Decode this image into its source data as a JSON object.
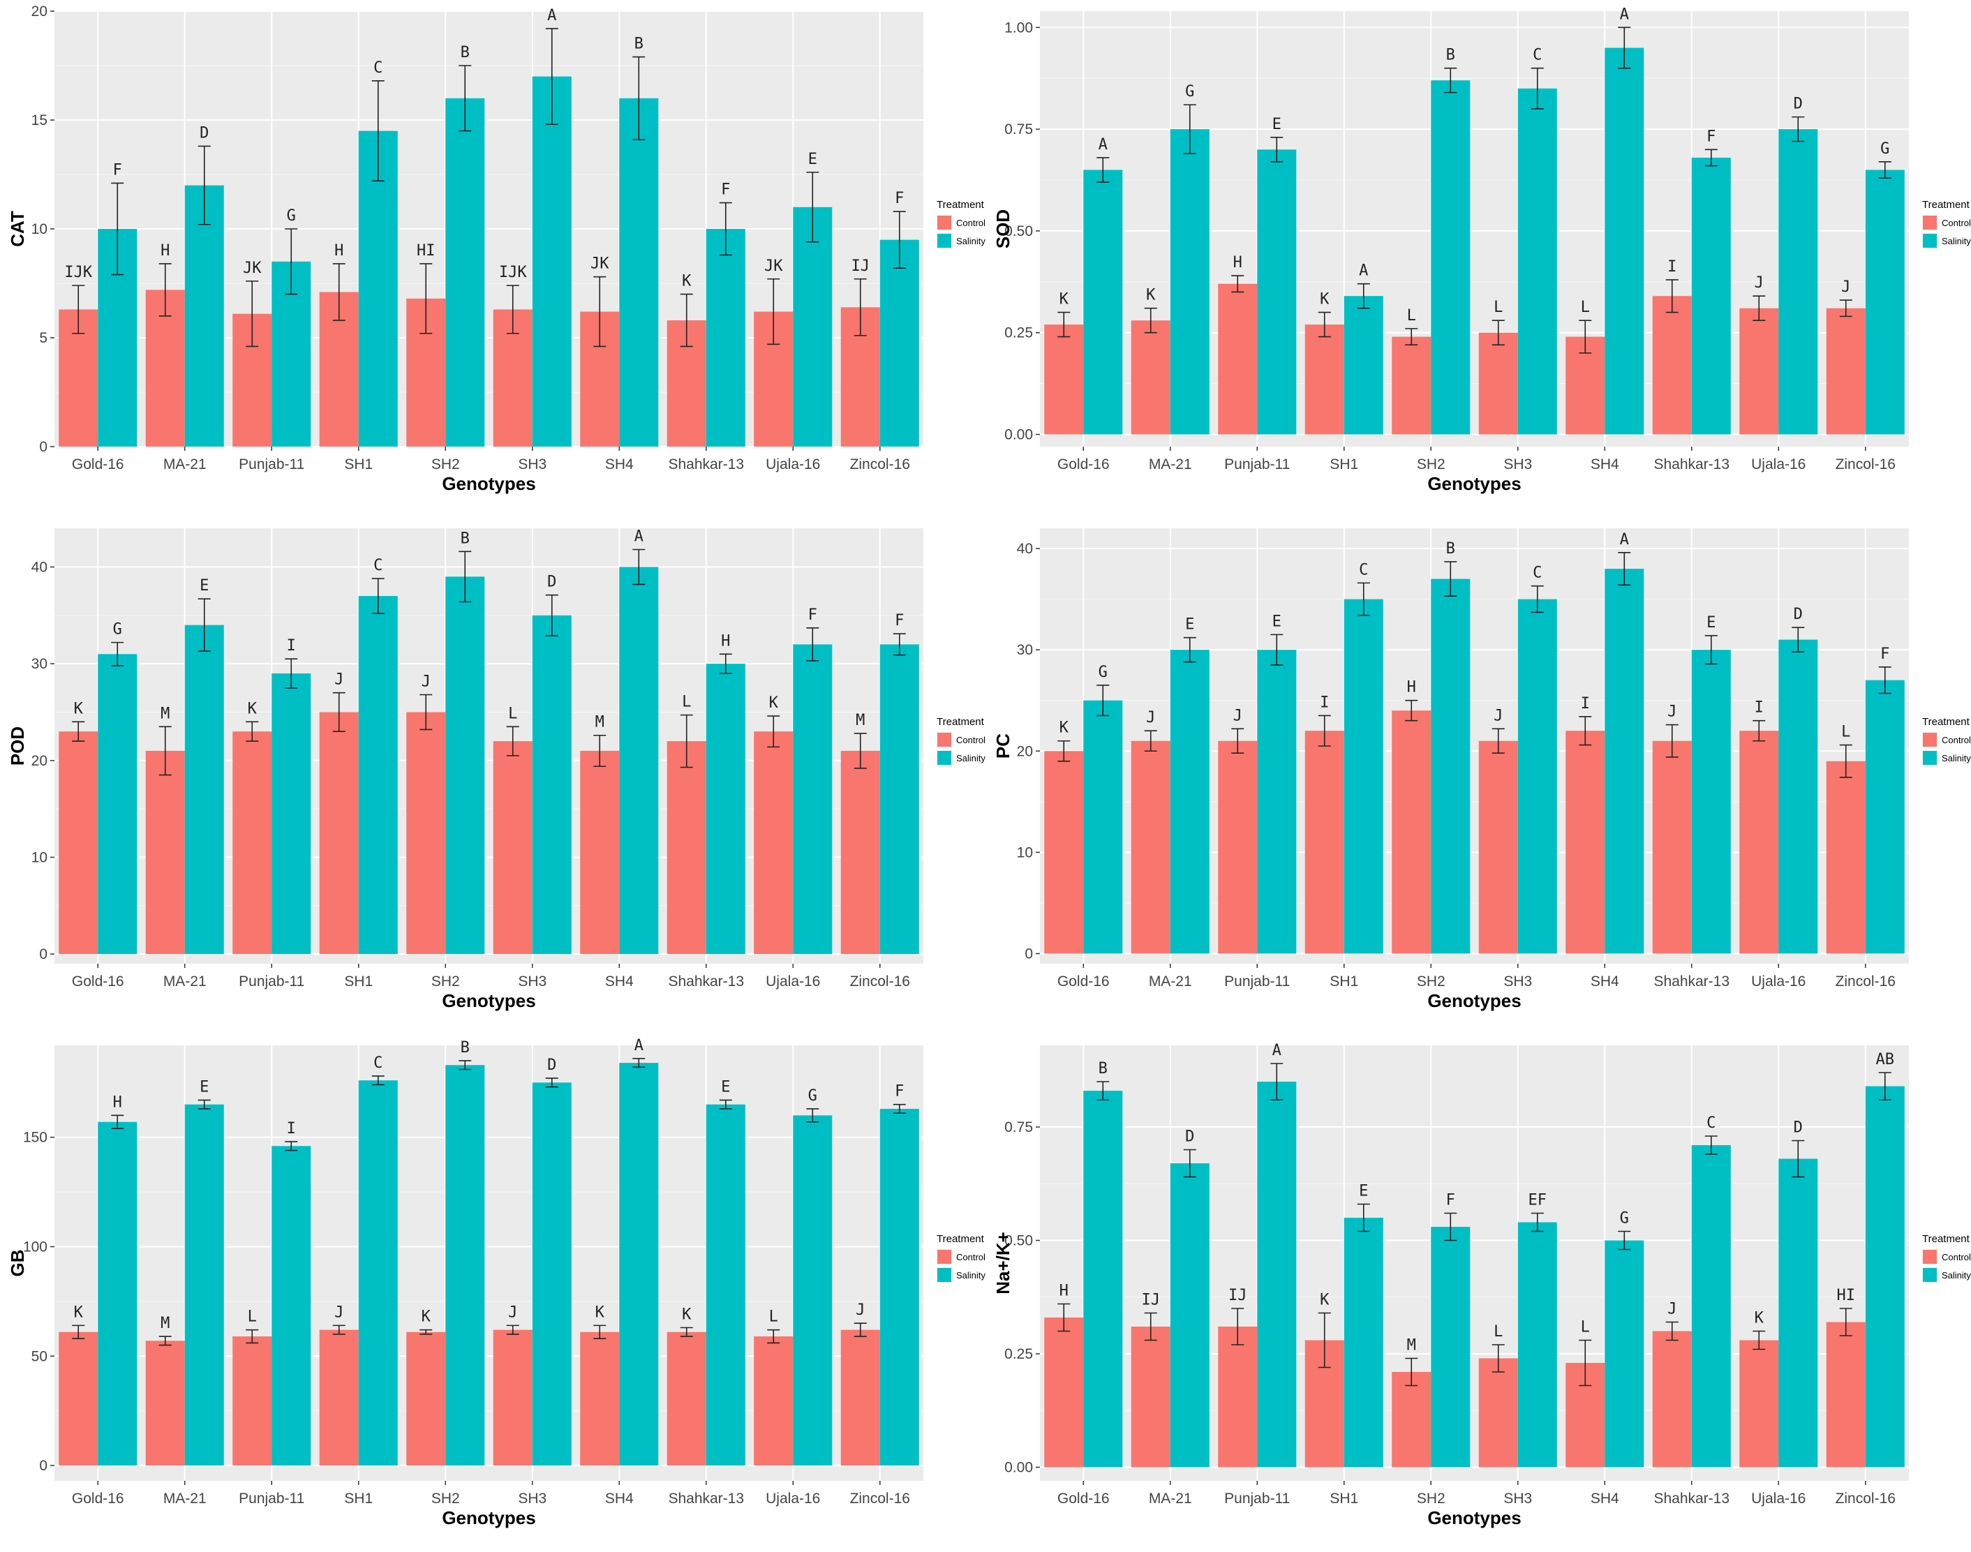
{
  "colors": {
    "control": "#F8766D",
    "salinity": "#00BFC4",
    "panel_bg": "#EBEBEB",
    "grid": "#FFFFFF"
  },
  "legend": {
    "title": "Treatment",
    "items": [
      "Control",
      "Salinity"
    ]
  },
  "chart_data": [
    {
      "type": "bar",
      "ylabel": "CAT",
      "xlabel": "Genotypes",
      "categories": [
        "Gold-16",
        "MA-21",
        "Punjab-11",
        "SH1",
        "SH2",
        "SH3",
        "SH4",
        "Shahkar-13",
        "Ujala-16",
        "Zincol-16"
      ],
      "ylim": [
        0,
        20
      ],
      "yticks": [
        0,
        5,
        10,
        15,
        20
      ],
      "ytick_labels": [
        "0",
        "5",
        "10",
        "15",
        "20"
      ],
      "legend_position": "right",
      "series": [
        {
          "name": "Control",
          "values": [
            6.3,
            7.2,
            6.1,
            7.1,
            6.8,
            6.3,
            6.2,
            5.8,
            6.2,
            6.4
          ],
          "errors": [
            1.1,
            1.2,
            1.5,
            1.3,
            1.6,
            1.1,
            1.6,
            1.2,
            1.5,
            1.3
          ],
          "letters": [
            "IJK",
            "H",
            "JK",
            "H",
            "HI",
            "IJK",
            "JK",
            "K",
            "JK",
            "IJ"
          ]
        },
        {
          "name": "Salinity",
          "values": [
            10.0,
            12.0,
            8.5,
            14.5,
            16.0,
            17.0,
            16.0,
            10.0,
            11.0,
            9.5
          ],
          "errors": [
            2.1,
            1.8,
            1.5,
            2.3,
            1.5,
            2.2,
            1.9,
            1.2,
            1.6,
            1.3
          ],
          "letters": [
            "F",
            "D",
            "G",
            "C",
            "B",
            "A",
            "B",
            "F",
            "E",
            "F"
          ]
        }
      ]
    },
    {
      "type": "bar",
      "ylabel": "SOD",
      "xlabel": "Genotypes",
      "categories": [
        "Gold-16",
        "MA-21",
        "Punjab-11",
        "SH1",
        "SH2",
        "SH3",
        "SH4",
        "Shahkar-13",
        "Ujala-16",
        "Zincol-16"
      ],
      "ylim": [
        -0.03,
        1.04
      ],
      "yticks": [
        0,
        0.25,
        0.5,
        0.75,
        1.0
      ],
      "ytick_labels": [
        "0.00",
        "0.25",
        "0.50",
        "0.75",
        "1.00"
      ],
      "legend_position": "right",
      "series": [
        {
          "name": "Control",
          "values": [
            0.27,
            0.28,
            0.37,
            0.27,
            0.24,
            0.25,
            0.24,
            0.34,
            0.31,
            0.31
          ],
          "errors": [
            0.03,
            0.03,
            0.02,
            0.03,
            0.02,
            0.03,
            0.04,
            0.04,
            0.03,
            0.02
          ],
          "letters": [
            "K",
            "K",
            "H",
            "K",
            "L",
            "L",
            "L",
            "I",
            "J",
            "J"
          ]
        },
        {
          "name": "Salinity",
          "values": [
            0.65,
            0.75,
            0.7,
            0.34,
            0.87,
            0.85,
            0.95,
            0.68,
            0.75,
            0.65
          ],
          "errors": [
            0.03,
            0.06,
            0.03,
            0.03,
            0.03,
            0.05,
            0.05,
            0.02,
            0.03,
            0.02
          ],
          "letters": [
            "A",
            "G",
            "E",
            "A",
            "B",
            "C",
            "A",
            "F",
            "D",
            "G"
          ]
        }
      ]
    },
    {
      "type": "bar",
      "ylabel": "POD",
      "xlabel": "Genotypes",
      "categories": [
        "Gold-16",
        "MA-21",
        "Punjab-11",
        "SH1",
        "SH2",
        "SH3",
        "SH4",
        "Shahkar-13",
        "Ujala-16",
        "Zincol-16"
      ],
      "ylim": [
        -1,
        44
      ],
      "yticks": [
        0,
        10,
        20,
        30,
        40
      ],
      "ytick_labels": [
        "0",
        "10",
        "20",
        "30",
        "40"
      ],
      "legend_position": "right",
      "series": [
        {
          "name": "Control",
          "values": [
            23,
            21,
            23,
            25,
            25,
            22,
            21,
            22,
            23,
            21
          ],
          "errors": [
            1.0,
            2.5,
            1.0,
            2.0,
            1.8,
            1.5,
            1.6,
            2.7,
            1.6,
            1.8
          ],
          "letters": [
            "K",
            "M",
            "K",
            "J",
            "J",
            "L",
            "M",
            "L",
            "K",
            "M"
          ]
        },
        {
          "name": "Salinity",
          "values": [
            31,
            34,
            29,
            37,
            39,
            35,
            40,
            30,
            32,
            32
          ],
          "errors": [
            1.2,
            2.7,
            1.5,
            1.8,
            2.6,
            2.1,
            1.8,
            1.0,
            1.7,
            1.1
          ],
          "letters": [
            "G",
            "E",
            "I",
            "C",
            "B",
            "D",
            "A",
            "H",
            "F",
            "F"
          ]
        }
      ]
    },
    {
      "type": "bar",
      "ylabel": "PC",
      "xlabel": "Genotypes",
      "categories": [
        "Gold-16",
        "MA-21",
        "Punjab-11",
        "SH1",
        "SH2",
        "SH3",
        "SH4",
        "Shahkar-13",
        "Ujala-16",
        "Zincol-16"
      ],
      "ylim": [
        -1,
        42
      ],
      "yticks": [
        0,
        10,
        20,
        30,
        40
      ],
      "ytick_labels": [
        "0",
        "10",
        "20",
        "30",
        "40"
      ],
      "legend_position": "right",
      "series": [
        {
          "name": "Control",
          "values": [
            20,
            21,
            21,
            22,
            24,
            21,
            22,
            21,
            22,
            19
          ],
          "errors": [
            1.0,
            1.0,
            1.2,
            1.5,
            1.0,
            1.2,
            1.4,
            1.6,
            1.0,
            1.6
          ],
          "letters": [
            "K",
            "J",
            "J",
            "I",
            "H",
            "J",
            "I",
            "J",
            "I",
            "L"
          ]
        },
        {
          "name": "Salinity",
          "values": [
            25,
            30,
            30,
            35,
            37,
            35,
            38,
            30,
            31,
            27
          ],
          "errors": [
            1.5,
            1.2,
            1.5,
            1.6,
            1.7,
            1.3,
            1.6,
            1.4,
            1.2,
            1.3
          ],
          "letters": [
            "G",
            "E",
            "E",
            "C",
            "B",
            "C",
            "A",
            "E",
            "D",
            "F"
          ]
        }
      ]
    },
    {
      "type": "bar",
      "ylabel": "GB",
      "xlabel": "Genotypes",
      "categories": [
        "Gold-16",
        "MA-21",
        "Punjab-11",
        "SH1",
        "SH2",
        "SH3",
        "SH4",
        "Shahkar-13",
        "Ujala-16",
        "Zincol-16"
      ],
      "ylim": [
        -7,
        192
      ],
      "yticks": [
        0,
        50,
        100,
        150
      ],
      "ytick_labels": [
        "0",
        "50",
        "100",
        "150"
      ],
      "legend_position": "right",
      "series": [
        {
          "name": "Control",
          "values": [
            61,
            57,
            59,
            62,
            61,
            62,
            61,
            61,
            59,
            62
          ],
          "errors": [
            3,
            2,
            3,
            2,
            1,
            2,
            3,
            2,
            3,
            3
          ],
          "letters": [
            "K",
            "M",
            "L",
            "J",
            "K",
            "J",
            "K",
            "K",
            "L",
            "J"
          ]
        },
        {
          "name": "Salinity",
          "values": [
            157,
            165,
            146,
            176,
            183,
            175,
            184,
            165,
            160,
            163
          ],
          "errors": [
            3,
            2,
            2,
            2,
            2,
            2,
            2,
            2,
            3,
            2
          ],
          "letters": [
            "H",
            "E",
            "I",
            "C",
            "B",
            "D",
            "A",
            "E",
            "G",
            "F"
          ]
        }
      ]
    },
    {
      "type": "bar",
      "ylabel": "Na+/K+",
      "xlabel": "Genotypes",
      "categories": [
        "Gold-16",
        "MA-21",
        "Punjab-11",
        "SH1",
        "SH2",
        "SH3",
        "SH4",
        "Shahkar-13",
        "Ujala-16",
        "Zincol-16"
      ],
      "ylim": [
        -0.03,
        0.93
      ],
      "yticks": [
        0,
        0.25,
        0.5,
        0.75
      ],
      "ytick_labels": [
        "0.00",
        "0.25",
        "0.50",
        "0.75"
      ],
      "legend_position": "right",
      "series": [
        {
          "name": "Control",
          "values": [
            0.33,
            0.31,
            0.31,
            0.28,
            0.21,
            0.24,
            0.23,
            0.3,
            0.28,
            0.32
          ],
          "errors": [
            0.03,
            0.03,
            0.04,
            0.06,
            0.03,
            0.03,
            0.05,
            0.02,
            0.02,
            0.03
          ],
          "letters": [
            "H",
            "IJ",
            "IJ",
            "K",
            "M",
            "L",
            "L",
            "J",
            "K",
            "HI"
          ]
        },
        {
          "name": "Salinity",
          "values": [
            0.83,
            0.67,
            0.85,
            0.55,
            0.53,
            0.54,
            0.5,
            0.71,
            0.68,
            0.84
          ],
          "errors": [
            0.02,
            0.03,
            0.04,
            0.03,
            0.03,
            0.02,
            0.02,
            0.02,
            0.04,
            0.03
          ],
          "letters": [
            "B",
            "D",
            "A",
            "E",
            "F",
            "EF",
            "G",
            "C",
            "D",
            "AB"
          ]
        }
      ]
    }
  ]
}
